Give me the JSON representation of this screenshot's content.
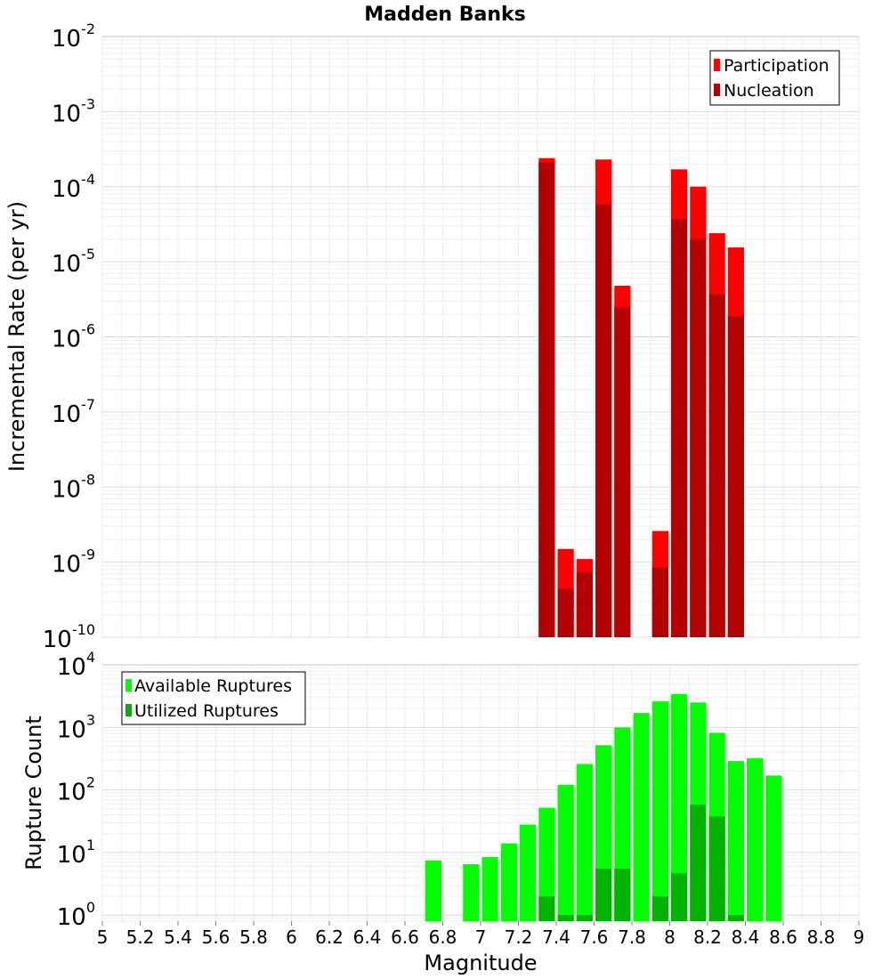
{
  "chart_data": [
    {
      "type": "bar",
      "title": "Madden Banks",
      "xlabel": "",
      "ylabel": "Incremental Rate (per yr)",
      "yscale": "log",
      "ylim": [
        1e-10,
        0.01
      ],
      "xlim": [
        5,
        9
      ],
      "bin_width": 0.1,
      "grid": true,
      "legend_position": "top-right",
      "series": [
        {
          "name": "Participation",
          "color": "#ff0000",
          "points": [
            {
              "x": 7.35,
              "y": 0.00024
            },
            {
              "x": 7.45,
              "y": 1.5e-09
            },
            {
              "x": 7.55,
              "y": 1.1e-09
            },
            {
              "x": 7.65,
              "y": 0.00023
            },
            {
              "x": 7.75,
              "y": 4.8e-06
            },
            {
              "x": 7.95,
              "y": 2.6e-09
            },
            {
              "x": 8.05,
              "y": 0.00017
            },
            {
              "x": 8.15,
              "y": 0.0001
            },
            {
              "x": 8.25,
              "y": 2.4e-05
            },
            {
              "x": 8.35,
              "y": 1.55e-05
            }
          ]
        },
        {
          "name": "Nucleation",
          "color": "#b30000",
          "points": [
            {
              "x": 7.35,
              "y": 0.00021
            },
            {
              "x": 7.45,
              "y": 4.4e-10
            },
            {
              "x": 7.55,
              "y": 7.4e-10
            },
            {
              "x": 7.65,
              "y": 5.8e-05
            },
            {
              "x": 7.75,
              "y": 2.5e-06
            },
            {
              "x": 7.95,
              "y": 8.5e-10
            },
            {
              "x": 8.05,
              "y": 3.7e-05
            },
            {
              "x": 8.15,
              "y": 2e-05
            },
            {
              "x": 8.25,
              "y": 3.7e-06
            },
            {
              "x": 8.35,
              "y": 1.9e-06
            }
          ]
        }
      ]
    },
    {
      "type": "bar",
      "title": "",
      "xlabel": "Magnitude",
      "ylabel": "Rupture Count",
      "yscale": "log",
      "ylim": [
        0.8,
        10000
      ],
      "xlim": [
        5,
        9
      ],
      "bin_width": 0.1,
      "grid": true,
      "legend_position": "top-left",
      "x_ticks": [
        "5",
        "5.2",
        "5.4",
        "5.6",
        "5.8",
        "6",
        "6.2",
        "6.4",
        "6.6",
        "6.8",
        "7",
        "7.2",
        "7.4",
        "7.6",
        "7.8",
        "8",
        "8.2",
        "8.4",
        "8.6",
        "8.8",
        "9"
      ],
      "series": [
        {
          "name": "Available Ruptures",
          "color": "#00ff00",
          "points": [
            {
              "x": 6.75,
              "y": 7.5
            },
            {
              "x": 6.95,
              "y": 6.5
            },
            {
              "x": 7.05,
              "y": 8.5
            },
            {
              "x": 7.15,
              "y": 14
            },
            {
              "x": 7.25,
              "y": 28
            },
            {
              "x": 7.35,
              "y": 52
            },
            {
              "x": 7.45,
              "y": 120
            },
            {
              "x": 7.55,
              "y": 260
            },
            {
              "x": 7.65,
              "y": 520
            },
            {
              "x": 7.75,
              "y": 1000
            },
            {
              "x": 7.85,
              "y": 1700
            },
            {
              "x": 7.95,
              "y": 2600
            },
            {
              "x": 8.05,
              "y": 3400
            },
            {
              "x": 8.15,
              "y": 2500
            },
            {
              "x": 8.25,
              "y": 820
            },
            {
              "x": 8.35,
              "y": 290
            },
            {
              "x": 8.45,
              "y": 320
            },
            {
              "x": 8.55,
              "y": 170
            }
          ]
        },
        {
          "name": "Utilized Ruptures",
          "color": "#00b300",
          "points": [
            {
              "x": 7.35,
              "y": 2
            },
            {
              "x": 7.45,
              "y": 1
            },
            {
              "x": 7.55,
              "y": 1
            },
            {
              "x": 7.65,
              "y": 5.5
            },
            {
              "x": 7.75,
              "y": 5.5
            },
            {
              "x": 7.95,
              "y": 2
            },
            {
              "x": 8.05,
              "y": 4.7
            },
            {
              "x": 8.15,
              "y": 58
            },
            {
              "x": 8.25,
              "y": 38
            },
            {
              "x": 8.35,
              "y": 1
            }
          ]
        }
      ]
    }
  ]
}
